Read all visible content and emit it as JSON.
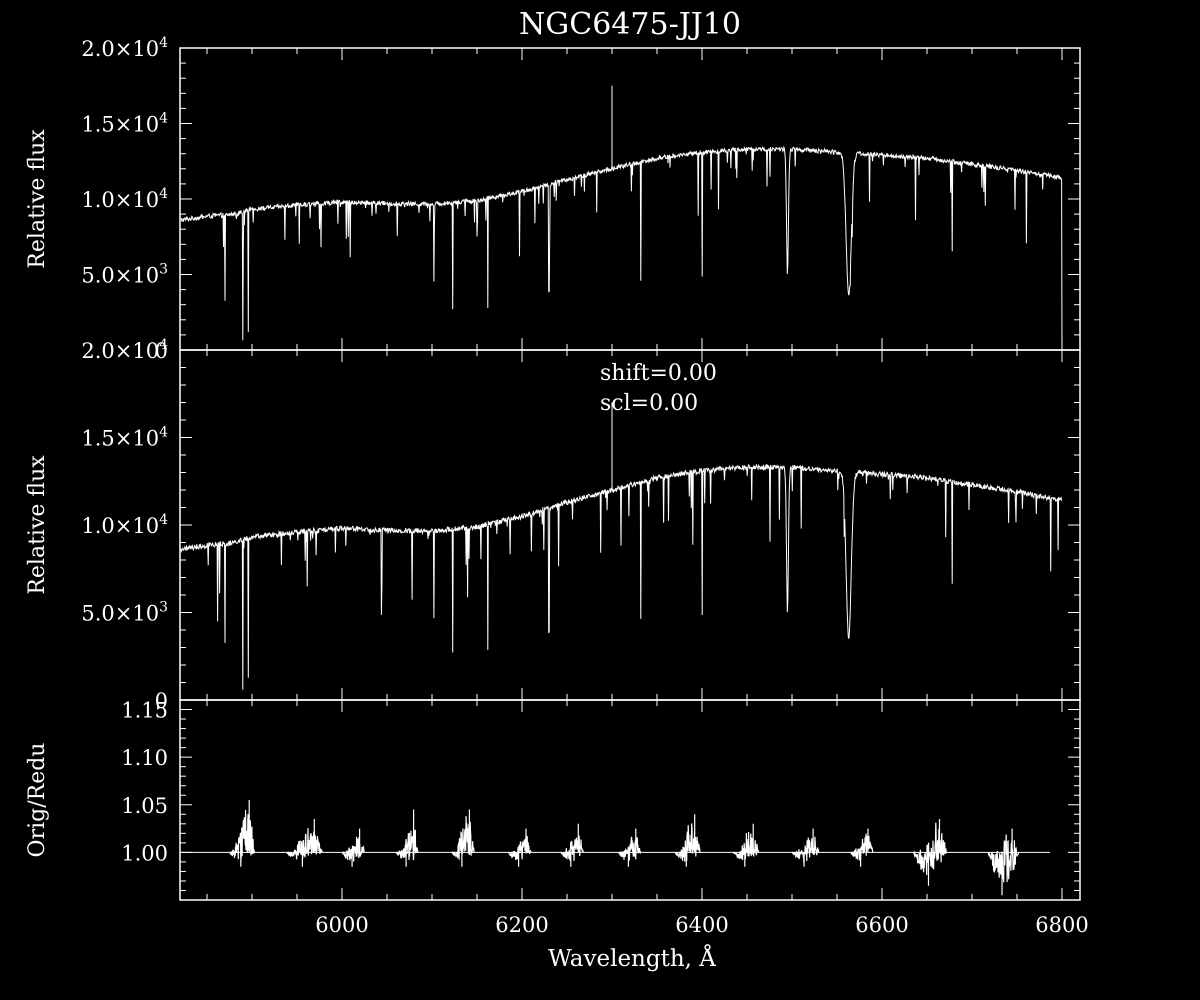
{
  "colors": {
    "background": "#000000",
    "foreground": "#ffffff"
  },
  "chart_data": [
    {
      "type": "line",
      "panel": "top",
      "title": "NGC6475-JJ10",
      "ylabel": "Relative flux",
      "xlim": [
        5820,
        6820
      ],
      "ylim": [
        0,
        20000
      ],
      "yticks": [
        {
          "value": 0,
          "label": "0"
        },
        {
          "value": 5000,
          "label": "5.0×10",
          "exp": "3"
        },
        {
          "value": 10000,
          "label": "1.0×10",
          "exp": "4"
        },
        {
          "value": 15000,
          "label": "1.5×10",
          "exp": "4"
        },
        {
          "value": 20000,
          "label": "2.0×10",
          "exp": "4"
        }
      ],
      "continuum": {
        "x": [
          5820,
          5850,
          5880,
          5900,
          5950,
          6000,
          6050,
          6100,
          6150,
          6200,
          6250,
          6300,
          6350,
          6400,
          6450,
          6500,
          6550,
          6600,
          6650,
          6700,
          6750,
          6800
        ],
        "y": [
          8600,
          8850,
          9000,
          9300,
          9600,
          9800,
          9700,
          9650,
          9900,
          10500,
          11300,
          12000,
          12700,
          13100,
          13300,
          13300,
          13100,
          12900,
          12700,
          12300,
          11900,
          11400
        ]
      },
      "absorption_lines": [
        {
          "x": 5870,
          "y": 3100
        },
        {
          "x": 5890,
          "y": 500
        },
        {
          "x": 5896,
          "y": 1200
        },
        {
          "x": 6102,
          "y": 4500
        },
        {
          "x": 6123,
          "y": 2700
        },
        {
          "x": 6162,
          "y": 2700
        },
        {
          "x": 6230,
          "y": 3800
        },
        {
          "x": 6332,
          "y": 4500
        },
        {
          "x": 6400,
          "y": 4800
        },
        {
          "x": 6495,
          "y": 5000
        },
        {
          "x": 6563,
          "y": 3500
        },
        {
          "x": 6678,
          "y": 6500
        }
      ],
      "spike": {
        "x": 6300,
        "y": 17500
      },
      "edge_drop": {
        "x": 6800,
        "y": 0
      }
    },
    {
      "type": "line",
      "panel": "middle",
      "ylabel": "Relative flux",
      "xlim": [
        5820,
        6820
      ],
      "ylim": [
        0,
        20000
      ],
      "yticks": [
        {
          "value": 0,
          "label": "0"
        },
        {
          "value": 5000,
          "label": "5.0×10",
          "exp": "3"
        },
        {
          "value": 10000,
          "label": "1.0×10",
          "exp": "4"
        },
        {
          "value": 15000,
          "label": "1.5×10",
          "exp": "4"
        },
        {
          "value": 20000,
          "label": "2.0×10",
          "exp": "4"
        }
      ],
      "annotations": [
        "shift=0.00",
        "scl=0.00"
      ],
      "continuum": {
        "x": [
          5820,
          5850,
          5880,
          5900,
          5950,
          6000,
          6050,
          6100,
          6150,
          6200,
          6250,
          6300,
          6350,
          6400,
          6450,
          6500,
          6550,
          6600,
          6650,
          6700,
          6750,
          6800
        ],
        "y": [
          8600,
          8850,
          9000,
          9300,
          9600,
          9800,
          9700,
          9650,
          9900,
          10500,
          11300,
          12000,
          12700,
          13100,
          13300,
          13300,
          13100,
          12900,
          12700,
          12300,
          11900,
          11400
        ]
      },
      "absorption_lines": [
        {
          "x": 5870,
          "y": 3100
        },
        {
          "x": 5890,
          "y": 500
        },
        {
          "x": 5896,
          "y": 1200
        },
        {
          "x": 6102,
          "y": 4500
        },
        {
          "x": 6123,
          "y": 2700
        },
        {
          "x": 6162,
          "y": 2700
        },
        {
          "x": 6230,
          "y": 3800
        },
        {
          "x": 6332,
          "y": 4500
        },
        {
          "x": 6400,
          "y": 4800
        },
        {
          "x": 6495,
          "y": 5000
        },
        {
          "x": 6563,
          "y": 3500
        },
        {
          "x": 6678,
          "y": 6500
        }
      ],
      "spike": {
        "x": 6300,
        "y": 17000
      }
    },
    {
      "type": "line",
      "panel": "bottom",
      "ylabel": "Orig/Redu",
      "xlabel": "Wavelength, Å",
      "xlim": [
        5820,
        6820
      ],
      "ylim": [
        0.95,
        1.16
      ],
      "xticks": [
        6000,
        6200,
        6400,
        6600,
        6800
      ],
      "yticks": [
        {
          "value": 1.0,
          "label": "1.00"
        },
        {
          "value": 1.05,
          "label": "1.05"
        },
        {
          "value": 1.1,
          "label": "1.10"
        },
        {
          "value": 1.15,
          "label": "1.15"
        }
      ],
      "reference_line": 1.0,
      "segments": [
        {
          "start": 5875,
          "end": 5903,
          "max": 1.055,
          "min": 0.985
        },
        {
          "start": 5938,
          "end": 5978,
          "max": 1.035,
          "min": 0.985
        },
        {
          "start": 6000,
          "end": 6025,
          "max": 1.025,
          "min": 0.985
        },
        {
          "start": 6060,
          "end": 6085,
          "max": 1.045,
          "min": 0.985
        },
        {
          "start": 6122,
          "end": 6147,
          "max": 1.045,
          "min": 0.985
        },
        {
          "start": 6185,
          "end": 6210,
          "max": 1.025,
          "min": 0.985
        },
        {
          "start": 6243,
          "end": 6268,
          "max": 1.03,
          "min": 0.985
        },
        {
          "start": 6307,
          "end": 6332,
          "max": 1.025,
          "min": 0.985
        },
        {
          "start": 6370,
          "end": 6398,
          "max": 1.04,
          "min": 0.985
        },
        {
          "start": 6435,
          "end": 6463,
          "max": 1.03,
          "min": 0.985
        },
        {
          "start": 6500,
          "end": 6530,
          "max": 1.025,
          "min": 0.985
        },
        {
          "start": 6565,
          "end": 6590,
          "max": 1.025,
          "min": 0.985
        },
        {
          "start": 6635,
          "end": 6672,
          "max": 1.035,
          "min": 0.965
        },
        {
          "start": 6718,
          "end": 6752,
          "max": 1.025,
          "min": 0.955
        }
      ]
    }
  ]
}
